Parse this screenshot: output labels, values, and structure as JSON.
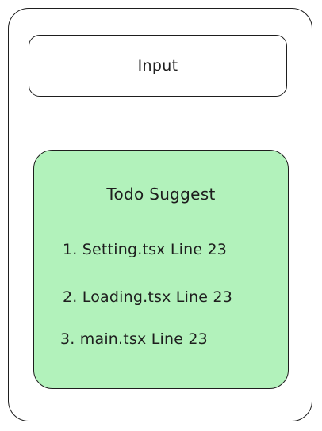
{
  "input": {
    "label": "Input"
  },
  "suggest": {
    "title": "Todo Suggest",
    "items": [
      {
        "label": "1. Setting.tsx Line 23"
      },
      {
        "label": "2. Loading.tsx Line 23"
      },
      {
        "label": "3. main.tsx Line 23"
      }
    ]
  },
  "colors": {
    "stroke": "#1e1e1e",
    "panel_fill": "#b2f2bb",
    "background": "#ffffff"
  }
}
